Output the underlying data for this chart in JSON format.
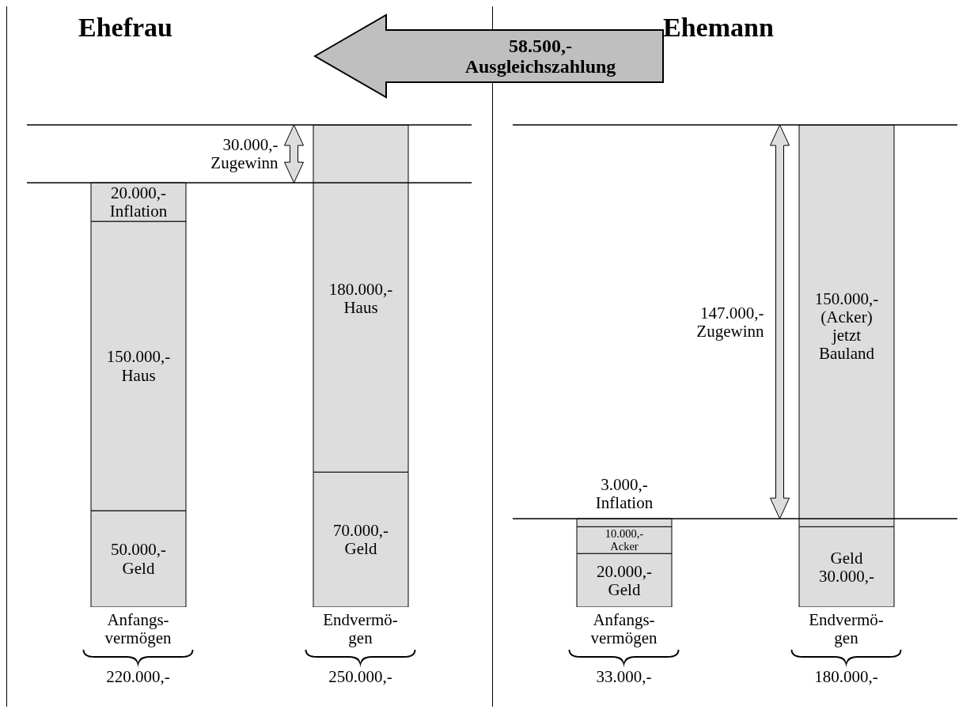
{
  "chart_data": [
    {
      "type": "bar",
      "title": "Ehefrau",
      "categories": [
        "Anfangs-\nvermögen",
        "Endvermö-\ngen"
      ],
      "stacked": true,
      "tick_labels": "x",
      "series": [
        {
          "color": "#dddddd",
          "values": [
            50000,
            70000
          ],
          "value_labels": [
            "50.000,-\nGeld",
            "70.000,-\nGeld"
          ]
        },
        {
          "color": "#dddddd",
          "values": [
            150000,
            180000
          ],
          "value_labels": [
            "150.000,-\nHaus",
            "180.000,-\nHaus"
          ]
        },
        {
          "color": "#dddddd",
          "values": [
            20000,
            null
          ],
          "value_labels": [
            "20.000,-\nInflation",
            null
          ]
        }
      ],
      "ref_lines": [
        {
          "axis": "y",
          "value": 220000
        },
        {
          "axis": "y",
          "value": 250000
        }
      ],
      "annotations": [
        "30.000,-\nZugewinn",
        "58.500,-\nAusgleichszahlung",
        "220.000,-",
        "250.000,-"
      ]
    },
    {
      "type": "bar",
      "title": "Ehemann",
      "categories": [
        "Anfangs-\nvermögen",
        "Endvermö-\ngen"
      ],
      "stacked": true,
      "tick_labels": "x",
      "series": [
        {
          "color": "#dddddd",
          "values": [
            20000,
            30000
          ],
          "value_labels": [
            "20.000,-\nGeld",
            "Geld\n30.000,-"
          ]
        },
        {
          "color": "#dddddd",
          "values": [
            10000,
            150000
          ],
          "value_labels": [
            "10.000,-\nAcker",
            "150.000,-\n(Acker)\njetzt\nBauland"
          ]
        },
        {
          "color": "#dddddd",
          "values": [
            3000,
            null
          ],
          "value_labels": [
            "3.000,-\nInflation",
            null
          ]
        }
      ],
      "ref_lines": [
        {
          "axis": "y",
          "value": 33000
        },
        {
          "axis": "y",
          "value": 180000
        }
      ],
      "annotations": [
        "147.000,-\nZugewinn",
        "33.000,-",
        "180.000,-"
      ]
    }
  ]
}
